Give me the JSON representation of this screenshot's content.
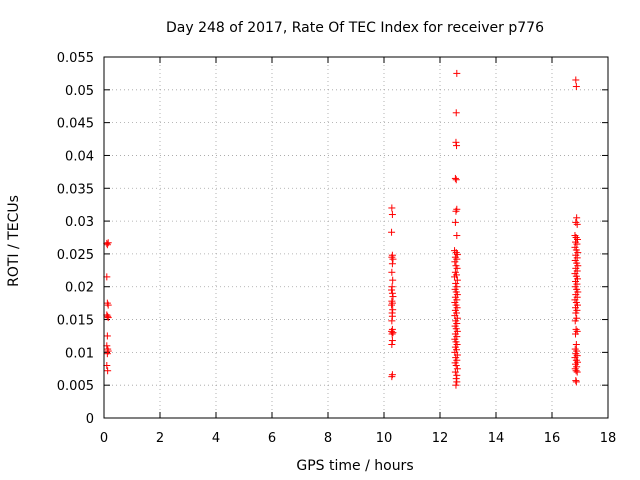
{
  "chart_data": {
    "type": "scatter",
    "title": "Day 248 of 2017, Rate Of TEC Index for receiver p776",
    "xlabel": "GPS time / hours",
    "ylabel": "ROTI / TECUs",
    "xlim": [
      0,
      18
    ],
    "ylim": [
      0,
      0.055
    ],
    "xticks": [
      0,
      2,
      4,
      6,
      8,
      10,
      12,
      14,
      16,
      18
    ],
    "xtick_labels": [
      "0",
      "2",
      "4",
      "6",
      "8",
      "10",
      "12",
      "14",
      "16",
      "18"
    ],
    "yticks": [
      0,
      0.005,
      0.01,
      0.015,
      0.02,
      0.025,
      0.03,
      0.035,
      0.04,
      0.045,
      0.05,
      0.055
    ],
    "ytick_labels": [
      "0",
      "0.005",
      "0.01",
      "0.015",
      "0.02",
      "0.025",
      "0.03",
      "0.035",
      "0.04",
      "0.045",
      "0.05",
      "0.055"
    ],
    "grid": true,
    "marker": "+",
    "marker_color": "#ff0000",
    "series": [
      {
        "name": "ROTI",
        "points": [
          [
            0.1,
            0.0266
          ],
          [
            0.12,
            0.0264
          ],
          [
            0.15,
            0.0267
          ],
          [
            0.1,
            0.0215
          ],
          [
            0.12,
            0.0175
          ],
          [
            0.15,
            0.0172
          ],
          [
            0.1,
            0.0157
          ],
          [
            0.13,
            0.0155
          ],
          [
            0.15,
            0.0153
          ],
          [
            0.12,
            0.0125
          ],
          [
            0.1,
            0.011
          ],
          [
            0.13,
            0.0105
          ],
          [
            0.15,
            0.0102
          ],
          [
            0.12,
            0.0098
          ],
          [
            0.1,
            0.008
          ],
          [
            0.13,
            0.0072
          ],
          [
            10.28,
            0.032
          ],
          [
            10.3,
            0.031
          ],
          [
            10.27,
            0.0283
          ],
          [
            10.3,
            0.0248
          ],
          [
            10.28,
            0.0245
          ],
          [
            10.32,
            0.0242
          ],
          [
            10.3,
            0.0235
          ],
          [
            10.28,
            0.0222
          ],
          [
            10.31,
            0.021
          ],
          [
            10.29,
            0.02
          ],
          [
            10.27,
            0.0195
          ],
          [
            10.3,
            0.019
          ],
          [
            10.32,
            0.0185
          ],
          [
            10.28,
            0.0178
          ],
          [
            10.3,
            0.0175
          ],
          [
            10.27,
            0.0172
          ],
          [
            10.31,
            0.0165
          ],
          [
            10.29,
            0.016
          ],
          [
            10.3,
            0.0155
          ],
          [
            10.28,
            0.0148
          ],
          [
            10.3,
            0.0135
          ],
          [
            10.27,
            0.0132
          ],
          [
            10.32,
            0.013
          ],
          [
            10.29,
            0.0128
          ],
          [
            10.3,
            0.0118
          ],
          [
            10.28,
            0.0112
          ],
          [
            10.3,
            0.0066
          ],
          [
            10.28,
            0.0063
          ],
          [
            12.6,
            0.0525
          ],
          [
            12.58,
            0.0465
          ],
          [
            12.57,
            0.042
          ],
          [
            12.59,
            0.0415
          ],
          [
            12.55,
            0.0365
          ],
          [
            12.58,
            0.0363
          ],
          [
            12.6,
            0.0318
          ],
          [
            12.57,
            0.0315
          ],
          [
            12.55,
            0.0298
          ],
          [
            12.6,
            0.0278
          ],
          [
            12.52,
            0.0255
          ],
          [
            12.58,
            0.0252
          ],
          [
            12.62,
            0.0249
          ],
          [
            12.55,
            0.0245
          ],
          [
            12.6,
            0.0242
          ],
          [
            12.53,
            0.0238
          ],
          [
            12.57,
            0.0232
          ],
          [
            12.61,
            0.0228
          ],
          [
            12.55,
            0.0222
          ],
          [
            12.59,
            0.0218
          ],
          [
            12.52,
            0.0215
          ],
          [
            12.62,
            0.021
          ],
          [
            12.56,
            0.0205
          ],
          [
            12.6,
            0.02
          ],
          [
            12.54,
            0.0196
          ],
          [
            12.58,
            0.0192
          ],
          [
            12.62,
            0.0188
          ],
          [
            12.55,
            0.0184
          ],
          [
            12.6,
            0.018
          ],
          [
            12.53,
            0.0176
          ],
          [
            12.57,
            0.0172
          ],
          [
            12.61,
            0.0168
          ],
          [
            12.55,
            0.0164
          ],
          [
            12.59,
            0.016
          ],
          [
            12.53,
            0.0156
          ],
          [
            12.62,
            0.0152
          ],
          [
            12.56,
            0.0148
          ],
          [
            12.6,
            0.0144
          ],
          [
            12.54,
            0.014
          ],
          [
            12.58,
            0.0136
          ],
          [
            12.62,
            0.0132
          ],
          [
            12.55,
            0.0128
          ],
          [
            12.6,
            0.0124
          ],
          [
            12.53,
            0.012
          ],
          [
            12.57,
            0.0116
          ],
          [
            12.61,
            0.0112
          ],
          [
            12.55,
            0.0108
          ],
          [
            12.59,
            0.0104
          ],
          [
            12.53,
            0.01
          ],
          [
            12.62,
            0.0096
          ],
          [
            12.56,
            0.0092
          ],
          [
            12.6,
            0.0088
          ],
          [
            12.54,
            0.0084
          ],
          [
            12.58,
            0.008
          ],
          [
            12.62,
            0.0075
          ],
          [
            12.55,
            0.007
          ],
          [
            12.6,
            0.0065
          ],
          [
            12.58,
            0.006
          ],
          [
            12.6,
            0.0055
          ],
          [
            12.57,
            0.005
          ],
          [
            16.85,
            0.0515
          ],
          [
            16.87,
            0.0505
          ],
          [
            16.88,
            0.0305
          ],
          [
            16.85,
            0.0298
          ],
          [
            16.9,
            0.0295
          ],
          [
            16.82,
            0.0278
          ],
          [
            16.86,
            0.0275
          ],
          [
            16.91,
            0.0272
          ],
          [
            16.84,
            0.0268
          ],
          [
            16.89,
            0.0265
          ],
          [
            16.82,
            0.026
          ],
          [
            16.87,
            0.0256
          ],
          [
            16.92,
            0.0252
          ],
          [
            16.85,
            0.0248
          ],
          [
            16.9,
            0.0244
          ],
          [
            16.83,
            0.024
          ],
          [
            16.88,
            0.0236
          ],
          [
            16.92,
            0.0232
          ],
          [
            16.85,
            0.0228
          ],
          [
            16.9,
            0.0224
          ],
          [
            16.82,
            0.022
          ],
          [
            16.87,
            0.0216
          ],
          [
            16.91,
            0.0212
          ],
          [
            16.84,
            0.0208
          ],
          [
            16.89,
            0.0204
          ],
          [
            16.83,
            0.02
          ],
          [
            16.88,
            0.0196
          ],
          [
            16.92,
            0.0192
          ],
          [
            16.85,
            0.0188
          ],
          [
            16.9,
            0.0184
          ],
          [
            16.82,
            0.018
          ],
          [
            16.87,
            0.0176
          ],
          [
            16.91,
            0.0172
          ],
          [
            16.84,
            0.0168
          ],
          [
            16.89,
            0.0164
          ],
          [
            16.85,
            0.016
          ],
          [
            16.88,
            0.0152
          ],
          [
            16.83,
            0.0148
          ],
          [
            16.86,
            0.0135
          ],
          [
            16.9,
            0.0132
          ],
          [
            16.84,
            0.0128
          ],
          [
            16.87,
            0.0112
          ],
          [
            16.83,
            0.0105
          ],
          [
            16.88,
            0.0102
          ],
          [
            16.85,
            0.0098
          ],
          [
            16.9,
            0.0095
          ],
          [
            16.82,
            0.0092
          ],
          [
            16.87,
            0.0088
          ],
          [
            16.91,
            0.0085
          ],
          [
            16.84,
            0.0082
          ],
          [
            16.88,
            0.0078
          ],
          [
            16.83,
            0.0075
          ],
          [
            16.86,
            0.0072
          ],
          [
            16.9,
            0.007
          ],
          [
            16.85,
            0.0057
          ],
          [
            16.87,
            0.0055
          ]
        ]
      }
    ]
  }
}
